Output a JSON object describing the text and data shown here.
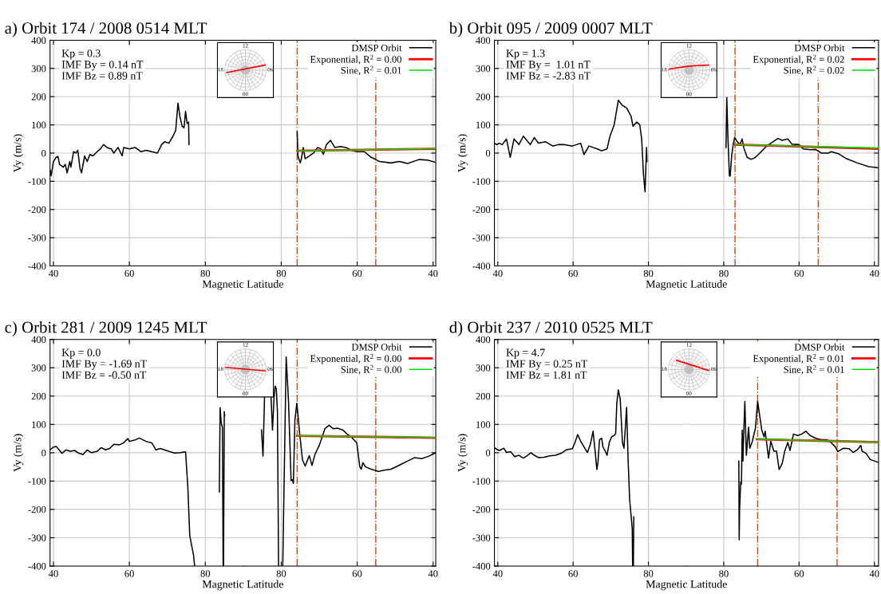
{
  "chart_data": [
    {
      "type": "line",
      "title": "a) Orbit 174 / 2008 0514 MLT",
      "xlabel": "Magnetic Latitude",
      "ylabel": "Vy (m/s)",
      "xlim": [
        39.1,
        90
      ],
      "xticks": [
        40,
        60,
        80
      ],
      "ylim": [
        -400,
        400
      ],
      "yticks": [
        -400,
        -300,
        -200,
        -100,
        0,
        100,
        200,
        300,
        400
      ],
      "grid": true,
      "line_style": "solid",
      "annotations": [
        "Kp = 0.3",
        "IMF By = 0.14 nT",
        "IMF Bz = 0.89 nT"
      ],
      "series": [
        {
          "color": "#000000",
          "x": [
            39.1,
            39.4,
            40,
            40.7,
            41.2,
            41.6,
            42.6,
            43.1,
            43.6,
            44.3,
            44.6,
            45.3,
            45.9,
            46.4,
            47.0,
            47.4,
            48.2,
            48.9,
            49.6,
            50.4,
            51.5,
            52.4,
            53.2,
            54.1,
            55.2,
            55.9,
            57.0,
            58.1,
            58.5,
            60,
            61.5,
            63,
            64.4,
            65.9,
            67.4,
            68.5,
            69.3,
            70.4,
            71.5,
            72.2,
            72.8,
            73.3,
            73.9,
            74.4,
            74.8,
            75.2,
            75.6,
            75.7
          ],
          "values": [
            -60,
            -80,
            -30,
            -15,
            -12,
            -40,
            -50,
            -40,
            -70,
            -30,
            -50,
            5,
            0,
            10,
            -55,
            -70,
            -10,
            -30,
            -5,
            -10,
            5,
            15,
            30,
            20,
            15,
            0,
            20,
            -10,
            20,
            15,
            20,
            5,
            10,
            5,
            0,
            30,
            40,
            35,
            60,
            80,
            177,
            130,
            95,
            90,
            148,
            105,
            110,
            30
          ]
        }
      ]
    },
    {
      "type": "line",
      "xlim": [
        90,
        39.3
      ],
      "xticks": [
        80,
        60,
        40
      ],
      "ylim": [
        -400,
        400
      ],
      "yticks": [
        -400,
        -300,
        -200,
        -100,
        0,
        100,
        200,
        300,
        400
      ],
      "tick_labels": "x",
      "grid": true,
      "legend": "top right",
      "line_style": "solid",
      "annotations": [
        "12",
        "06",
        "00",
        "18"
      ],
      "ref_lines": [
        {
          "axis": "x",
          "value": 75.8,
          "color": "#cc4400",
          "line_style": "dashdot"
        },
        {
          "axis": "x",
          "value": 55.1,
          "color": "#cc4400",
          "line_style": "dashdot"
        }
      ],
      "series": [
        {
          "name": "DMSP Orbit",
          "color": "#000000",
          "x": [
            75.8,
            75.6,
            75.0,
            74.7,
            74.2,
            73.7,
            72.6,
            71.5,
            70.4,
            69.6,
            68.9,
            68.1,
            67.0,
            65.9,
            64.4,
            63.0,
            61.5,
            60,
            58.1,
            56.3,
            54.1,
            51.1,
            48.9,
            46.7,
            43.7,
            41.5,
            39.3
          ],
          "values": [
            75,
            -10,
            -35,
            -20,
            20,
            -20,
            -10,
            0,
            20,
            15,
            -5,
            30,
            45,
            20,
            23,
            20,
            10,
            5,
            5,
            -15,
            -30,
            -35,
            -30,
            -37,
            -23,
            -25,
            -33
          ]
        },
        {
          "name": "Exponential, R$^{2}$ = 0.00",
          "color": "#ff0000",
          "x": [
            75.8,
            39.3
          ],
          "values": [
            8,
            15
          ]
        },
        {
          "name": "Sine, R$^{2}$ = 0.01",
          "color": "#00dd00",
          "x": [
            75.8,
            39.3
          ],
          "values": [
            8,
            16
          ]
        }
      ]
    },
    {
      "type": "line",
      "title": "b) Orbit 095 / 2009 0007 MLT",
      "xlabel": "Magnetic Latitude",
      "ylabel": "Vy (m/s)",
      "xlim": [
        39.1,
        90
      ],
      "xticks": [
        40,
        60,
        80
      ],
      "ylim": [
        -400,
        400
      ],
      "yticks": [
        -400,
        -300,
        -200,
        -100,
        0,
        100,
        200,
        300,
        400
      ],
      "grid": true,
      "line_style": "solid",
      "annotations": [
        "Kp = 1.3",
        "IMF By =  1.01 nT",
        "IMF Bz = -2.83 nT"
      ],
      "series": [
        {
          "color": "#000000",
          "x": [
            39.1,
            39.7,
            40.4,
            41.2,
            42.3,
            43.3,
            44.3,
            45.6,
            46.8,
            48.6,
            49.7,
            50.8,
            52.7,
            54.6,
            56.0,
            57.5,
            59.8,
            62.0,
            62.9,
            64.2,
            66.4,
            67.6,
            69.0,
            69.8,
            70.9,
            72.0,
            73.0,
            74.2,
            75.4,
            75.9,
            76.9,
            77.7,
            78.2,
            78.7,
            79.1,
            79.5,
            79.6
          ],
          "values": [
            35,
            30,
            35,
            30,
            50,
            -15,
            50,
            30,
            60,
            30,
            55,
            35,
            40,
            25,
            30,
            30,
            25,
            35,
            -5,
            25,
            15,
            8,
            15,
            60,
            100,
            187,
            170,
            160,
            130,
            95,
            110,
            100,
            50,
            -80,
            -137,
            20,
            -30
          ]
        }
      ]
    },
    {
      "type": "line",
      "xlim": [
        90,
        38.9
      ],
      "xticks": [
        80,
        60,
        40
      ],
      "ylim": [
        -400,
        400
      ],
      "yticks": [
        -400,
        -300,
        -200,
        -100,
        0,
        100,
        200,
        300,
        400
      ],
      "tick_labels": "x",
      "grid": true,
      "legend": "top right",
      "line_style": "solid",
      "annotations": [
        "12",
        "06",
        "00",
        "18"
      ],
      "ref_lines": [
        {
          "axis": "x",
          "value": 77.0,
          "color": "#cc4400",
          "line_style": "dashdot"
        },
        {
          "axis": "x",
          "value": 54.9,
          "color": "#cc4400",
          "line_style": "dashdot"
        }
      ],
      "series": [
        {
          "name": "DMSP Orbit",
          "color": "#000000",
          "x": [
            79.4,
            79.2,
            78.9,
            78.5,
            78.3,
            77.9,
            77.5,
            77.1,
            76.4,
            75.7,
            75.1,
            74.7,
            73.8,
            72.8,
            71.9,
            70.8,
            69.0,
            67.5,
            65.6,
            64.5,
            63.0,
            61.9,
            60.0,
            58.9,
            57.0,
            55.6,
            54.1,
            52.2,
            51.5,
            49.6,
            47.4,
            44.5,
            41.5,
            38.9
          ],
          "values": [
            20,
            197,
            60,
            -80,
            -82,
            -10,
            30,
            55,
            40,
            30,
            50,
            20,
            -15,
            -22,
            -18,
            -5,
            20,
            35,
            52,
            45,
            50,
            32,
            30,
            15,
            12,
            13,
            0,
            0,
            5,
            -2,
            -20,
            -35,
            -48,
            -52
          ]
        },
        {
          "name": "Exponential, R$^{2}$ = 0.02",
          "color": "#ff0000",
          "x": [
            77.0,
            38.9
          ],
          "values": [
            30,
            15
          ]
        },
        {
          "name": "Sine, R$^{2}$ = 0.02",
          "color": "#00dd00",
          "x": [
            77.0,
            38.9
          ],
          "values": [
            30,
            18
          ]
        }
      ]
    },
    {
      "type": "line",
      "title": "c) Orbit 281 / 2009 1245 MLT",
      "xlabel": "Magnetic Latitude",
      "ylabel": "Vy (m/s)",
      "xlim": [
        39.1,
        90
      ],
      "xticks": [
        40,
        60,
        80
      ],
      "ylim": [
        -400,
        400
      ],
      "yticks": [
        -400,
        -300,
        -200,
        -100,
        0,
        100,
        200,
        300,
        400
      ],
      "grid": true,
      "line_style": "solid",
      "annotations": [
        "Kp = 0.0",
        "IMF By = -1.69 nT",
        "IMF Bz = -0.50 nT"
      ],
      "series": [
        {
          "color": "#000000",
          "x": [
            39.1,
            40,
            40.7,
            41.5,
            42.2,
            43.3,
            44.4,
            45.6,
            46.7,
            47.8,
            48.9,
            50,
            51.5,
            52.6,
            53.7,
            54.8,
            55.9,
            57.4,
            58.5,
            59.6,
            60,
            61.5,
            62.6,
            64.4,
            65.9,
            67.0,
            68.1,
            70.4,
            71.9,
            73.3,
            74.8,
            75.4,
            75.9,
            76.9,
            77.2,
            80,
            83.7,
            83.9,
            84.2,
            84.5,
            84.7,
            84.8,
            85.0,
            85.1
          ],
          "values": [
            10,
            20,
            22,
            10,
            -2,
            10,
            5,
            8,
            -2,
            -6,
            10,
            0,
            5,
            18,
            10,
            15,
            30,
            28,
            35,
            50,
            40,
            45,
            52,
            40,
            35,
            10,
            15,
            5,
            -1,
            0,
            3,
            -123,
            -292,
            -362,
            -400,
            null,
            -138,
            159,
            105,
            90,
            -400,
            -400,
            145,
            130
          ]
        }
      ]
    },
    {
      "type": "line",
      "xlim": [
        90,
        39.3
      ],
      "xticks": [
        80,
        60,
        40
      ],
      "ylim": [
        -400,
        400
      ],
      "yticks": [
        -400,
        -300,
        -200,
        -100,
        0,
        100,
        200,
        300,
        400
      ],
      "tick_labels": "x",
      "grid": true,
      "legend": "top right",
      "line_style": "solid",
      "annotations": [
        "12",
        "06",
        "00",
        "18"
      ],
      "ref_lines": [
        {
          "axis": "x",
          "value": 75.8,
          "color": "#cc4400",
          "line_style": "dashdot"
        },
        {
          "axis": "x",
          "value": 55.1,
          "color": "#cc4400",
          "line_style": "dashdot"
        }
      ],
      "series": [
        {
          "name": "DMSP Orbit",
          "color": "#000000",
          "x": [
            85.2,
            84.8,
            84.4,
            84.3,
            84.0,
            82.7,
            82.3,
            81.9,
            81.6,
            81.3,
            81.0,
            80.7,
            80.2,
            79.6,
            78.7,
            78.1,
            77.4,
            77.04,
            76.8,
            76.4,
            75.9,
            75.6,
            75.2,
            74.4,
            73.7,
            72.6,
            71.9,
            71.1,
            70,
            68.5,
            67.4,
            66.3,
            65.2,
            63.7,
            62.6,
            61.5,
            60.1,
            59.3,
            58.9,
            58.5,
            57.8,
            56.3,
            54.4,
            52.6,
            51.1,
            48.9,
            46.7,
            44.8,
            43,
            41.1,
            39.3
          ],
          "values": [
            80,
            -12,
            195,
            200,
            null,
            200,
            80,
            195,
            235,
            225,
            145,
            -400,
            null,
            -400,
            338,
            187,
            -98,
            -95,
            -108,
            115,
            175,
            135,
            75,
            -25,
            -47,
            -10,
            -45,
            -5,
            25,
            85,
            97,
            85,
            87,
            80,
            65,
            55,
            35,
            -50,
            -58,
            -35,
            -50,
            -58,
            -66,
            -61,
            -58,
            -44,
            -29,
            -17,
            -21,
            -12,
            0
          ]
        },
        {
          "name": "Exponential, R$^{2}$ = 0.00",
          "color": "#ff0000",
          "x": [
            75.8,
            39.3
          ],
          "values": [
            60,
            53
          ]
        },
        {
          "name": "Sine, R$^{2}$ = 0.00",
          "color": "#00dd00",
          "x": [
            75.8,
            39.3
          ],
          "values": [
            60,
            54
          ]
        }
      ]
    },
    {
      "type": "line",
      "title": "d) Orbit 237 / 2010 0525 MLT",
      "xlabel": "Magnetic Latitude",
      "ylabel": "Vy (m/s)",
      "xlim": [
        39.1,
        90
      ],
      "xticks": [
        40,
        60,
        80
      ],
      "ylim": [
        -400,
        400
      ],
      "yticks": [
        -400,
        -300,
        -200,
        -100,
        0,
        100,
        200,
        300,
        400
      ],
      "grid": true,
      "line_style": "solid",
      "annotations": [
        "Kp = 4.7",
        "IMF By = 0.25 nT",
        "IMF Bz = 1.81 nT"
      ],
      "series": [
        {
          "color": "#000000",
          "x": [
            39.1,
            39.7,
            40.4,
            41.6,
            42.3,
            43.4,
            44.5,
            45.6,
            46.8,
            47.9,
            48.8,
            49.7,
            50.8,
            52.3,
            53.8,
            55.3,
            56.8,
            58.3,
            59.8,
            60.5,
            61.2,
            62.0,
            63.1,
            63.8,
            64.6,
            65.3,
            65.9,
            66.3,
            66.6,
            67.0,
            67.6,
            67.9,
            68.7,
            69.0,
            69.6,
            70.2,
            70.9,
            71.3,
            71.6,
            72.0,
            72.5,
            73.1,
            73.5,
            73.9,
            74.2,
            74.6,
            75.0,
            75.4,
            75.7,
            75.8,
            75.9,
            76.0,
            76.1
          ],
          "values": [
            18,
            12,
            8,
            16,
            1,
            4,
            -14,
            -9,
            -19,
            -9,
            0,
            -9,
            -17,
            -16,
            -11,
            -9,
            -2,
            11,
            14,
            36,
            64,
            41,
            16,
            1,
            31,
            76,
            -2,
            -59,
            -34,
            46,
            51,
            21,
            1,
            -9,
            36,
            56,
            61,
            68,
            175,
            222,
            190,
            36,
            16,
            96,
            160,
            -24,
            -163,
            -223,
            -268,
            -400,
            null,
            -400,
            -226
          ]
        }
      ]
    },
    {
      "type": "line",
      "xlim": [
        90,
        38.9
      ],
      "xticks": [
        80,
        60,
        40
      ],
      "ylim": [
        -400,
        400
      ],
      "yticks": [
        -400,
        -300,
        -200,
        -100,
        0,
        100,
        200,
        300,
        400
      ],
      "tick_labels": "x",
      "grid": true,
      "legend": "top right",
      "line_style": "solid",
      "annotations": [
        "12",
        "06",
        "00",
        "18"
      ],
      "ref_lines": [
        {
          "axis": "x",
          "value": 71.0,
          "color": "#cc4400",
          "line_style": "dashdot"
        },
        {
          "axis": "x",
          "value": 49.9,
          "color": "#cc4400",
          "line_style": "dashdot"
        }
      ],
      "series": [
        {
          "name": "DMSP Orbit",
          "color": "#000000",
          "x": [
            76.0,
            75.9,
            75.8,
            75.5,
            75.3,
            75.1,
            74.9,
            74.8,
            74.4,
            74.0,
            73.4,
            73.1,
            72.5,
            71.6,
            71.0,
            70.5,
            69.9,
            69.3,
            69.0,
            68.1,
            67.5,
            66.7,
            66.0,
            65.3,
            64.5,
            63.8,
            63.0,
            62.4,
            61.5,
            60.4,
            59.3,
            58.2,
            57.1,
            55.6,
            54.1,
            52.6,
            51.5,
            50.4,
            49.7,
            48.2,
            46.7,
            45.6,
            44.5,
            43.6,
            43.3,
            42.2,
            41.1,
            40.0,
            38.9
          ],
          "values": [
            -29,
            -307,
            -203,
            -103,
            -110,
            80,
            -29,
            26,
            181,
            -9,
            90,
            16,
            36,
            86,
            181,
            135,
            80,
            56,
            76,
            -19,
            41,
            6,
            6,
            -59,
            -39,
            6,
            36,
            8,
            66,
            61,
            66,
            76,
            61,
            51,
            46,
            46,
            36,
            21,
            4,
            16,
            14,
            1,
            11,
            26,
            6,
            -2,
            -24,
            -29,
            -34
          ]
        },
        {
          "name": "Exponential, R$^{2}$ = 0.01",
          "color": "#ff0000",
          "x": [
            71.2,
            38.9
          ],
          "values": [
            48,
            37
          ]
        },
        {
          "name": "Sine, R$^{2}$ = 0.01",
          "color": "#00dd00",
          "x": [
            71.2,
            38.9
          ],
          "values": [
            48,
            37
          ]
        }
      ]
    }
  ]
}
